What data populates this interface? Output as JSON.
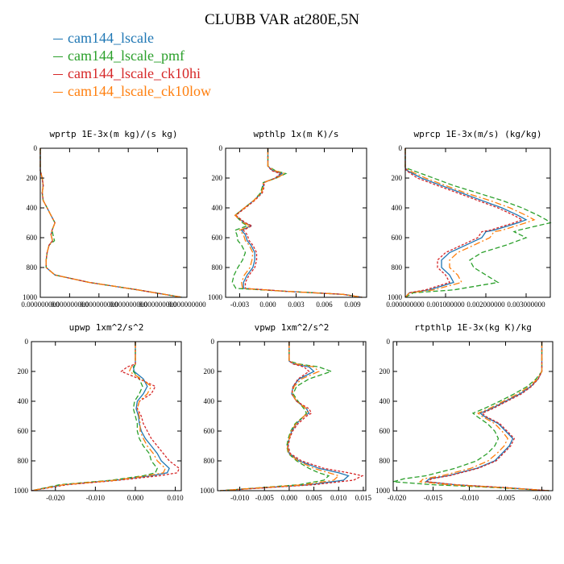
{
  "title": "CLUBB VAR at280E,5N",
  "legend": [
    {
      "name": "cam144_lscale",
      "color": "#1f77b4"
    },
    {
      "name": "cam144_lscale_pmf",
      "color": "#2ca02c"
    },
    {
      "name": "cam144_lscale_ck10hi",
      "color": "#d62728"
    },
    {
      "name": "cam144_lscale_ck10low",
      "color": "#ff7f0e"
    }
  ],
  "chart_data": [
    {
      "type": "line",
      "title": "wprtp  1E-3x(m kg)/(s kg)",
      "xlim": [
        0,
        3e-08
      ],
      "ylim": [
        1000,
        0
      ],
      "x_tick_labels": [
        "0.000000000",
        "0.000000000",
        "0.000000000",
        "0.000000000",
        "0.000000000",
        "0.000000000"
      ],
      "y_ticks": [
        0,
        200,
        400,
        600,
        800,
        1000
      ],
      "y": [
        0,
        150,
        200,
        250,
        300,
        350,
        400,
        450,
        500,
        550,
        580,
        620,
        650,
        700,
        750,
        800,
        850,
        900,
        950,
        1000
      ],
      "series": [
        {
          "name": "cam144_lscale",
          "x": [
            0,
            0,
            4e-10,
            6e-10,
            4e-10,
            6e-10,
            1.4e-09,
            2.2e-09,
            3e-09,
            2.4e-09,
            2.2e-09,
            2.5e-09,
            1.8e-09,
            1.4e-09,
            1.2e-09,
            1.2e-09,
            3e-09,
            1e-08,
            2e-08,
            2.9e-08
          ]
        },
        {
          "name": "cam144_lscale_pmf",
          "x": [
            0,
            0,
            4e-10,
            6e-10,
            4e-10,
            6e-10,
            1.4e-09,
            2.2e-09,
            3e-09,
            2.4e-09,
            2.6e-09,
            2.9e-09,
            1.8e-09,
            1.4e-09,
            1.2e-09,
            1.2e-09,
            3e-09,
            1e-08,
            2e-08,
            2.9e-08
          ]
        },
        {
          "name": "cam144_lscale_ck10hi",
          "x": [
            0,
            0,
            4e-10,
            6e-10,
            4e-10,
            6e-10,
            1.4e-09,
            2.2e-09,
            3e-09,
            2.4e-09,
            2.2e-09,
            2.5e-09,
            1.8e-09,
            1.4e-09,
            1.2e-09,
            1.2e-09,
            3e-09,
            1e-08,
            2e-08,
            2.9e-08
          ]
        },
        {
          "name": "cam144_lscale_ck10low",
          "x": [
            0,
            0,
            4e-10,
            6e-10,
            4e-10,
            6e-10,
            1.4e-09,
            2.2e-09,
            3e-09,
            2.4e-09,
            2.2e-09,
            2.5e-09,
            1.8e-09,
            1.4e-09,
            1.2e-09,
            1.2e-09,
            3e-09,
            1e-08,
            2e-08,
            2.9e-08
          ]
        }
      ]
    },
    {
      "type": "line",
      "title": "wpthlp  1x(m K)/s",
      "xlim": [
        -0.0045,
        0.0105
      ],
      "ylim": [
        1000,
        0
      ],
      "x_tick_labels": [
        "-0.003",
        "0.000",
        "0.003",
        "0.006",
        "0.009"
      ],
      "x_ticks": [
        -0.003,
        0,
        0.003,
        0.006,
        0.009
      ],
      "y_ticks": [
        0,
        200,
        400,
        600,
        800,
        1000
      ],
      "y": [
        0,
        120,
        150,
        170,
        200,
        230,
        260,
        300,
        350,
        400,
        450,
        500,
        520,
        550,
        580,
        620,
        650,
        700,
        750,
        800,
        850,
        900,
        940,
        960,
        980,
        1000
      ],
      "series": [
        {
          "name": "cam144_lscale",
          "x": [
            0,
            0,
            0.0005,
            0.0015,
            0.0008,
            -0.0005,
            -0.0005,
            -0.0007,
            -0.0015,
            -0.0025,
            -0.0035,
            -0.0025,
            -0.0018,
            -0.0028,
            -0.0024,
            -0.0022,
            -0.0018,
            -0.0014,
            -0.0014,
            -0.0016,
            -0.0022,
            -0.0026,
            -0.0026,
            0.002,
            0.008,
            0.01
          ]
        },
        {
          "name": "cam144_lscale_pmf",
          "x": [
            0,
            0,
            0.0008,
            0.0019,
            0.0009,
            -0.0005,
            -0.0006,
            -0.0008,
            -0.0015,
            -0.0025,
            -0.0035,
            -0.0027,
            -0.0022,
            -0.0035,
            -0.0033,
            -0.0032,
            -0.0028,
            -0.0024,
            -0.0027,
            -0.0032,
            -0.0036,
            -0.0038,
            -0.0034,
            0.002,
            0.008,
            0.01
          ]
        },
        {
          "name": "cam144_lscale_ck10hi",
          "x": [
            0,
            0,
            0.0004,
            0.0013,
            0.0008,
            -0.0004,
            -0.0004,
            -0.0006,
            -0.0014,
            -0.0024,
            -0.0034,
            -0.0024,
            -0.0017,
            -0.0026,
            -0.0022,
            -0.002,
            -0.0016,
            -0.0012,
            -0.0012,
            -0.0014,
            -0.002,
            -0.0024,
            -0.0024,
            0.002,
            0.008,
            0.01
          ]
        },
        {
          "name": "cam144_lscale_ck10low",
          "x": [
            0,
            0,
            0.0007,
            0.0018,
            0.0009,
            -0.0005,
            -0.0005,
            -0.0007,
            -0.0015,
            -0.0025,
            -0.0035,
            -0.0026,
            -0.0019,
            -0.003,
            -0.0026,
            -0.0024,
            -0.002,
            -0.0016,
            -0.0017,
            -0.0019,
            -0.0025,
            -0.0028,
            -0.0027,
            0.002,
            0.008,
            0.01
          ]
        }
      ]
    },
    {
      "type": "line",
      "title": "wprcp  1E-3x(m/s) (kg/kg)",
      "xlim": [
        0,
        0.0036
      ],
      "ylim": [
        1000,
        0
      ],
      "x_tick_labels": [
        "0.000000000",
        "0.001000000",
        "0.002000000",
        "0.003000000"
      ],
      "x_ticks": [
        0,
        0.001,
        0.002,
        0.003
      ],
      "y_ticks": [
        0,
        200,
        400,
        600,
        800,
        1000
      ],
      "y": [
        0,
        130,
        150,
        200,
        250,
        300,
        350,
        400,
        450,
        480,
        500,
        550,
        560,
        600,
        650,
        700,
        750,
        800,
        850,
        900,
        950,
        970,
        1000
      ],
      "series": [
        {
          "name": "cam144_lscale",
          "x": [
            0,
            0,
            5e-05,
            0.0004,
            0.0009,
            0.0014,
            0.0019,
            0.0024,
            0.0028,
            0.003,
            0.0028,
            0.0022,
            0.002,
            0.0019,
            0.0015,
            0.0011,
            0.0009,
            0.0009,
            0.0011,
            0.0012,
            0.0006,
            0.0001,
            0
          ]
        },
        {
          "name": "cam144_lscale_pmf",
          "x": [
            0,
            0,
            0.0002,
            0.0007,
            0.0012,
            0.0018,
            0.0024,
            0.0029,
            0.0033,
            0.0035,
            0.0036,
            0.0028,
            0.0027,
            0.003,
            0.0025,
            0.0019,
            0.0016,
            0.0017,
            0.002,
            0.0023,
            0.0012,
            0.0002,
            0
          ]
        },
        {
          "name": "cam144_lscale_ck10hi",
          "x": [
            0,
            0,
            3e-05,
            0.0003,
            0.0008,
            0.0013,
            0.0018,
            0.0023,
            0.0027,
            0.0029,
            0.0027,
            0.0021,
            0.0019,
            0.0018,
            0.0014,
            0.001,
            0.0008,
            0.0008,
            0.001,
            0.0011,
            0.0005,
            0.0001,
            0
          ]
        },
        {
          "name": "cam144_lscale_ck10low",
          "x": [
            0,
            0,
            0.0001,
            0.0005,
            0.001,
            0.0015,
            0.0021,
            0.0026,
            0.003,
            0.0032,
            0.003,
            0.0024,
            0.0022,
            0.0021,
            0.0017,
            0.0013,
            0.0011,
            0.0011,
            0.0013,
            0.0014,
            0.0007,
            0.0001,
            0
          ]
        }
      ]
    },
    {
      "type": "line",
      "title": "upwp  1xm^2/s^2",
      "xlim": [
        -0.026,
        0.0115
      ],
      "ylim": [
        1000,
        0
      ],
      "x_tick_labels": [
        "-0.020",
        "-0.010",
        "0.000",
        "0.010"
      ],
      "x_ticks": [
        -0.02,
        -0.01,
        0,
        0.01
      ],
      "y_ticks": [
        0,
        200,
        400,
        600,
        800,
        1000
      ],
      "y": [
        0,
        150,
        170,
        200,
        250,
        300,
        350,
        400,
        450,
        500,
        550,
        600,
        650,
        700,
        750,
        800,
        850,
        880,
        900,
        930,
        960,
        1000
      ],
      "series": [
        {
          "name": "cam144_lscale",
          "x": [
            0,
            0,
            -0.0005,
            -0.0003,
            0.002,
            0.003,
            0.002,
            0.0005,
            0.0002,
            0.0008,
            0.001,
            0.0015,
            0.0025,
            0.004,
            0.0055,
            0.0065,
            0.0085,
            0.008,
            0.004,
            -0.005,
            -0.018,
            -0.026
          ]
        },
        {
          "name": "cam144_lscale_pmf",
          "x": [
            0,
            0,
            -0.0003,
            -0.0005,
            0.001,
            0.0018,
            0.001,
            -0.0002,
            -0.0005,
            0.0,
            0.0005,
            0.0005,
            0.001,
            0.002,
            0.0035,
            0.004,
            0.0055,
            0.005,
            0.002,
            -0.006,
            -0.019,
            -0.026
          ]
        },
        {
          "name": "cam144_lscale_ck10hi",
          "x": [
            0,
            0,
            -0.002,
            -0.0035,
            0.001,
            0.005,
            0.004,
            0.001,
            0.0005,
            0.0015,
            0.002,
            0.003,
            0.004,
            0.0055,
            0.007,
            0.0085,
            0.011,
            0.0105,
            0.006,
            -0.004,
            -0.017,
            -0.026
          ]
        },
        {
          "name": "cam144_lscale_ck10low",
          "x": [
            0,
            0,
            -0.001,
            -0.0015,
            0.0015,
            0.004,
            0.003,
            0.001,
            0.0005,
            0.001,
            0.0012,
            0.0012,
            0.002,
            0.003,
            0.0045,
            0.0055,
            0.0075,
            0.007,
            0.003,
            -0.005,
            -0.018,
            -0.026
          ]
        }
      ]
    },
    {
      "type": "line",
      "title": "vpwp  1xm^2/s^2",
      "xlim": [
        -0.0145,
        0.0155
      ],
      "ylim": [
        1000,
        0
      ],
      "x_tick_labels": [
        "-0.010",
        "-0.005",
        "0.000",
        "0.005",
        "0.010",
        "0.015"
      ],
      "x_ticks": [
        -0.01,
        -0.005,
        0,
        0.005,
        0.01,
        0.015
      ],
      "y_ticks": [
        0,
        200,
        400,
        600,
        800,
        1000
      ],
      "y": [
        0,
        130,
        150,
        170,
        200,
        250,
        300,
        350,
        400,
        450,
        480,
        500,
        550,
        600,
        650,
        700,
        750,
        800,
        850,
        880,
        900,
        930,
        960,
        1000
      ],
      "series": [
        {
          "name": "cam144_lscale",
          "x": [
            0,
            0,
            0.001,
            0.004,
            0.005,
            0.002,
            0.0008,
            0.0005,
            0.0015,
            0.0035,
            0.004,
            0.003,
            0.0015,
            0.0005,
            0.0,
            -0.0003,
            0.0,
            0.002,
            0.006,
            0.01,
            0.012,
            0.011,
            0.004,
            -0.014
          ]
        },
        {
          "name": "cam144_lscale_pmf",
          "x": [
            0,
            0,
            0.002,
            0.006,
            0.0085,
            0.004,
            0.0015,
            0.0008,
            0.0018,
            0.003,
            0.0035,
            0.003,
            0.0012,
            0.0003,
            -0.0002,
            -0.0005,
            -0.0002,
            0.0015,
            0.004,
            0.006,
            0.008,
            0.007,
            0.002,
            -0.014
          ]
        },
        {
          "name": "cam144_lscale_ck10hi",
          "x": [
            0,
            0,
            0.0008,
            0.003,
            0.004,
            0.0018,
            0.0008,
            0.0005,
            0.0015,
            0.004,
            0.0045,
            0.0035,
            0.0018,
            0.0007,
            0.0001,
            -0.0002,
            0.0002,
            0.0025,
            0.007,
            0.012,
            0.0148,
            0.013,
            0.005,
            -0.014
          ]
        },
        {
          "name": "cam144_lscale_ck10low",
          "x": [
            0,
            0,
            0.0015,
            0.005,
            0.006,
            0.0025,
            0.001,
            0.0006,
            0.0015,
            0.0035,
            0.0038,
            0.003,
            0.0014,
            0.0004,
            0.0,
            -0.0004,
            -0.0001,
            0.0018,
            0.005,
            0.008,
            0.01,
            0.009,
            0.003,
            -0.014
          ]
        }
      ]
    },
    {
      "type": "line",
      "title": "rtpthlp  1E-3x(kg K)/kg",
      "xlim": [
        -0.0205,
        0.0015
      ],
      "ylim": [
        1000,
        0
      ],
      "x_tick_labels": [
        "-0.020",
        "-0.015",
        "-0.010",
        "-0.005",
        "-0.000"
      ],
      "x_ticks": [
        -0.02,
        -0.015,
        -0.01,
        -0.005,
        0
      ],
      "y_ticks": [
        0,
        200,
        400,
        600,
        800,
        1000
      ],
      "y": [
        0,
        100,
        200,
        250,
        300,
        350,
        400,
        450,
        480,
        500,
        550,
        600,
        650,
        700,
        750,
        800,
        850,
        900,
        920,
        940,
        960,
        980,
        1000
      ],
      "series": [
        {
          "name": "cam144_lscale",
          "x": [
            0,
            0,
            0,
            -0.0005,
            -0.0015,
            -0.003,
            -0.005,
            -0.007,
            -0.0085,
            -0.008,
            -0.006,
            -0.005,
            -0.004,
            -0.0045,
            -0.0055,
            -0.0065,
            -0.009,
            -0.013,
            -0.0155,
            -0.016,
            -0.012,
            -0.005,
            0.001
          ]
        },
        {
          "name": "cam144_lscale_pmf",
          "x": [
            0,
            0,
            0,
            -0.0008,
            -0.002,
            -0.0038,
            -0.0058,
            -0.008,
            -0.0095,
            -0.009,
            -0.0075,
            -0.0065,
            -0.006,
            -0.0065,
            -0.0075,
            -0.009,
            -0.012,
            -0.016,
            -0.019,
            -0.0205,
            -0.015,
            -0.006,
            0.001
          ]
        },
        {
          "name": "cam144_lscale_ck10hi",
          "x": [
            0,
            0,
            0,
            -0.0005,
            -0.0014,
            -0.0028,
            -0.0048,
            -0.0068,
            -0.0082,
            -0.0078,
            -0.0058,
            -0.0048,
            -0.0038,
            -0.0043,
            -0.0053,
            -0.0063,
            -0.0088,
            -0.0128,
            -0.0152,
            -0.0158,
            -0.0118,
            -0.0048,
            0.001
          ]
        },
        {
          "name": "cam144_lscale_ck10low",
          "x": [
            0,
            0,
            0,
            -0.0006,
            -0.0017,
            -0.0033,
            -0.0053,
            -0.0073,
            -0.0088,
            -0.0083,
            -0.0065,
            -0.0055,
            -0.0047,
            -0.0052,
            -0.0062,
            -0.0074,
            -0.0098,
            -0.0138,
            -0.0163,
            -0.0168,
            -0.0128,
            -0.0053,
            0.001
          ]
        }
      ]
    }
  ]
}
